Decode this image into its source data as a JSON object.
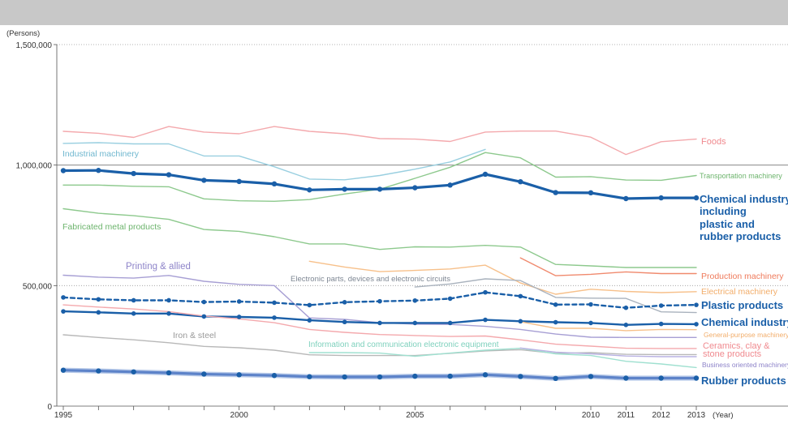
{
  "chart_data": {
    "type": "line",
    "ylabel": "(Persons)",
    "xlabel": "(Year)",
    "ylim": [
      0,
      1500000
    ],
    "y_ticks": [
      0,
      500000,
      1000000,
      1500000
    ],
    "y_tick_labels": [
      "0",
      "500,000",
      "1,000,000",
      "1,500,000"
    ],
    "x_ticks": [
      1995,
      1996,
      1997,
      1998,
      1999,
      2000,
      2001,
      2002,
      2003,
      2004,
      2005,
      2006,
      2007,
      2008,
      2009,
      2010,
      2011,
      2012,
      2013
    ],
    "x_tick_labels": [
      {
        "x": 1995,
        "label": "1995"
      },
      {
        "x": 2000,
        "label": "2000"
      },
      {
        "x": 2005,
        "label": "2005"
      },
      {
        "x": 2010,
        "label": "2010"
      },
      {
        "x": 2011,
        "label": "2011"
      },
      {
        "x": 2012,
        "label": "2012"
      },
      {
        "x": 2013,
        "label": "2013"
      }
    ],
    "grid": "dotted horizontal at 500,000 and 1,500,000; solid at 1,000,000",
    "series": [
      {
        "name": "Foods",
        "color": "#f4a9ad",
        "width": 1.4,
        "label_pos": "right",
        "x": [
          1995,
          1996,
          1997,
          1998,
          1999,
          2000,
          2001,
          2002,
          2003,
          2004,
          2005,
          2006,
          2007,
          2008,
          2009,
          2010,
          2011,
          2012,
          2013
        ],
        "y": [
          1140000,
          1132000,
          1115000,
          1160000,
          1137000,
          1130000,
          1160000,
          1140000,
          1130000,
          1110000,
          1108000,
          1098000,
          1137000,
          1141000,
          1141000,
          1116000,
          1044000,
          1097000,
          1108000
        ]
      },
      {
        "name": "Industrial machinery",
        "color": "#99cfe0",
        "width": 1.4,
        "label_pos": "left-top",
        "x": [
          1995,
          1996,
          1997,
          1998,
          1999,
          2000,
          2001,
          2002,
          2003,
          2004,
          2005,
          2006,
          2007
        ],
        "y": [
          1090000,
          1093000,
          1088000,
          1088000,
          1038000,
          1038000,
          993000,
          942000,
          939000,
          957000,
          983000,
          1013000,
          1065000
        ]
      },
      {
        "name": "Transportation machinery",
        "color": "#8dc98d",
        "width": 1.4,
        "label_pos": "right",
        "x": [
          1995,
          1996,
          1997,
          1998,
          1999,
          2000,
          2001,
          2002,
          2003,
          2004,
          2005,
          2006,
          2007,
          2008,
          2009,
          2010,
          2011,
          2012,
          2013
        ],
        "y": [
          917000,
          917000,
          912000,
          910000,
          860000,
          852000,
          850000,
          857000,
          880000,
          900000,
          945000,
          991000,
          1052000,
          1030000,
          950000,
          952000,
          938000,
          937000,
          957000
        ]
      },
      {
        "name": "Chemical industry including plastic and rubber products",
        "color": "#1a5fa8",
        "width": 3.2,
        "markers": true,
        "label_pos": "right",
        "x": [
          1995,
          1996,
          1997,
          1998,
          1999,
          2000,
          2001,
          2002,
          2003,
          2004,
          2005,
          2006,
          2007,
          2008,
          2009,
          2010,
          2011,
          2012,
          2013
        ],
        "y": [
          977000,
          978000,
          965000,
          960000,
          937000,
          932000,
          922000,
          897000,
          900000,
          900000,
          906000,
          917000,
          962000,
          931000,
          886000,
          885000,
          861000,
          864000,
          864000
        ]
      },
      {
        "name": "Fabricated metal products",
        "color": "#8dc98d",
        "width": 1.4,
        "label_pos": "left",
        "x": [
          1995,
          1996,
          1997,
          1998,
          1999,
          2000,
          2001,
          2002,
          2003,
          2004,
          2005,
          2006,
          2007,
          2008,
          2009,
          2010,
          2011,
          2012,
          2013
        ],
        "y": [
          819000,
          800000,
          790000,
          775000,
          733000,
          725000,
          703000,
          673000,
          673000,
          650000,
          661000,
          660000,
          667000,
          660000,
          588000,
          582000,
          575000,
          575000,
          575000
        ]
      },
      {
        "name": "Production machinery",
        "color": "#f08a6e",
        "width": 1.4,
        "label_pos": "right",
        "x": [
          2008,
          2009,
          2010,
          2011,
          2012,
          2013
        ],
        "y": [
          615000,
          541000,
          547000,
          557000,
          550000,
          550000
        ]
      },
      {
        "name": "Electrical machinery",
        "color": "#f7c08a",
        "width": 1.4,
        "label_pos": "right",
        "x": [
          2002,
          2003,
          2004,
          2005,
          2006,
          2007,
          2008,
          2009,
          2010,
          2011,
          2012,
          2013
        ],
        "y": [
          601000,
          577000,
          558000,
          563000,
          569000,
          585000,
          511000,
          464000,
          485000,
          476000,
          471000,
          475000
        ]
      },
      {
        "name": "Printing & allied",
        "color": "#a79fd4",
        "width": 1.4,
        "label_pos": "left",
        "x": [
          1995,
          1996,
          1997,
          1998,
          1999,
          2000,
          2001,
          2002,
          2003,
          2004,
          2005,
          2006,
          2007,
          2008,
          2009,
          2010,
          2011,
          2012,
          2013
        ],
        "y": [
          543000,
          535000,
          531000,
          542000,
          518000,
          505000,
          500000,
          366000,
          360000,
          346000,
          340000,
          339000,
          331000,
          318000,
          299000,
          286000,
          285000,
          285000,
          285000
        ]
      },
      {
        "name": "Electronic parts, devices and electronic circuits",
        "color": "#a9b2bd",
        "width": 1.4,
        "label_pos": "top",
        "x": [
          2005,
          2006,
          2007,
          2008,
          2009,
          2010,
          2011,
          2012,
          2013
        ],
        "y": [
          494000,
          507000,
          528000,
          521000,
          451000,
          448000,
          447000,
          391000,
          388000
        ]
      },
      {
        "name": "Plastic products",
        "color": "#1a5fa8",
        "width": 2.4,
        "dashed": true,
        "markers": true,
        "label_pos": "right",
        "x": [
          1995,
          1996,
          1997,
          1998,
          1999,
          2000,
          2001,
          2002,
          2003,
          2004,
          2005,
          2006,
          2007,
          2008,
          2009,
          2010,
          2011,
          2012,
          2013
        ],
        "y": [
          451000,
          443000,
          439000,
          439000,
          432000,
          434000,
          429000,
          419000,
          431000,
          435000,
          438000,
          446000,
          472000,
          456000,
          421000,
          422000,
          408000,
          417000,
          420000
        ]
      },
      {
        "name": "Chemical industry",
        "color": "#1a5fa8",
        "width": 2.4,
        "markers": true,
        "label_pos": "right",
        "x": [
          1995,
          1996,
          1997,
          1998,
          1999,
          2000,
          2001,
          2002,
          2003,
          2004,
          2005,
          2006,
          2007,
          2008,
          2009,
          2010,
          2011,
          2012,
          2013
        ],
        "y": [
          393000,
          389000,
          384000,
          384000,
          372000,
          370000,
          367000,
          356000,
          349000,
          345000,
          345000,
          345000,
          358000,
          352000,
          348000,
          345000,
          337000,
          341000,
          340000
        ]
      },
      {
        "name": "General-purpose machinery",
        "color": "#f7c08a",
        "width": 1.4,
        "label_pos": "right",
        "x": [
          2008,
          2009,
          2010,
          2011,
          2012,
          2013
        ],
        "y": [
          350000,
          323000,
          323000,
          313000,
          318000,
          317000
        ]
      },
      {
        "name": "Iron & steel",
        "color": "#b8b8b8",
        "width": 1.4,
        "label_pos": "left",
        "x": [
          1995,
          1996,
          1997,
          1998,
          1999,
          2000,
          2001,
          2002,
          2003,
          2004,
          2005,
          2006,
          2007,
          2008,
          2009,
          2010,
          2011,
          2012,
          2013
        ],
        "y": [
          296000,
          285000,
          275000,
          263000,
          248000,
          242000,
          232000,
          213000,
          210000,
          210000,
          210000,
          219000,
          229000,
          234000,
          219000,
          222000,
          215000,
          214000,
          214000
        ]
      },
      {
        "name": "Ceramics, clay & stone products",
        "color": "#f4a9ad",
        "width": 1.4,
        "label_pos": "right",
        "x": [
          1995,
          1996,
          1997,
          1998,
          1999,
          2000,
          2001,
          2002,
          2003,
          2004,
          2005,
          2006,
          2007,
          2008,
          2009,
          2010,
          2011,
          2012,
          2013
        ],
        "y": [
          420000,
          411000,
          403000,
          392000,
          374000,
          362000,
          346000,
          318000,
          306000,
          297000,
          293000,
          289000,
          291000,
          275000,
          257000,
          249000,
          240000,
          239000,
          239000
        ]
      },
      {
        "name": "Information and communication electronic equipment",
        "color": "#9fe0d0",
        "width": 1.4,
        "label_pos": "top",
        "x": [
          2002,
          2003,
          2004,
          2005,
          2006,
          2007,
          2008,
          2009,
          2010,
          2011,
          2012,
          2013
        ],
        "y": [
          222000,
          222000,
          220000,
          207000,
          220000,
          232000,
          240000,
          217000,
          210000,
          186000,
          175000,
          160000
        ]
      },
      {
        "name": "Business oriented machinery",
        "color": "#b9b2e3",
        "width": 1.4,
        "label_pos": "right",
        "x": [
          2008,
          2009,
          2010,
          2011,
          2012,
          2013
        ],
        "y": [
          241000,
          224000,
          217000,
          208000,
          205000,
          205000
        ]
      },
      {
        "name": "Rubber products",
        "color": "#5d83c9",
        "width": 3.2,
        "halo": true,
        "markers": true,
        "label_pos": "right",
        "x": [
          1995,
          1996,
          1997,
          1998,
          1999,
          2000,
          2001,
          2002,
          2003,
          2004,
          2005,
          2006,
          2007,
          2008,
          2009,
          2010,
          2011,
          2012,
          2013
        ],
        "y": [
          149000,
          146000,
          142000,
          138000,
          133000,
          130000,
          127000,
          122000,
          121000,
          121000,
          124000,
          124000,
          130000,
          123000,
          115000,
          123000,
          116000,
          116000,
          116000
        ]
      }
    ]
  },
  "labels": {
    "foods": "Foods",
    "industrial_machinery": "Industrial machinery",
    "transportation_machinery": "Transportation machinery",
    "chem_incl_1": "Chemical industry",
    "chem_incl_2": "including",
    "chem_incl_3": "plastic and",
    "chem_incl_4": "rubber products",
    "fabricated_metal": "Fabricated metal products",
    "printing": "Printing & allied",
    "electronic_parts": "Electronic parts, devices and electronic circuits",
    "production_machinery": "Production machinery",
    "electrical_machinery": "Electrical machinery",
    "plastic_products": "Plastic products",
    "chemical_industry": "Chemical industry",
    "general_purpose": "General-purpose machinery",
    "ceramics_1": "Ceramics, clay &",
    "ceramics_2": "stone products",
    "business_oriented": "Business oriented machinery",
    "iron_steel": "Iron & steel",
    "info_comm": "Information and communication electronic equipment",
    "rubber_products": "Rubber products"
  },
  "colors": {
    "header_bar": "#c8c8c8",
    "axis": "#555555",
    "gridline": "#9a9a9a",
    "text_dark": "#333333"
  }
}
